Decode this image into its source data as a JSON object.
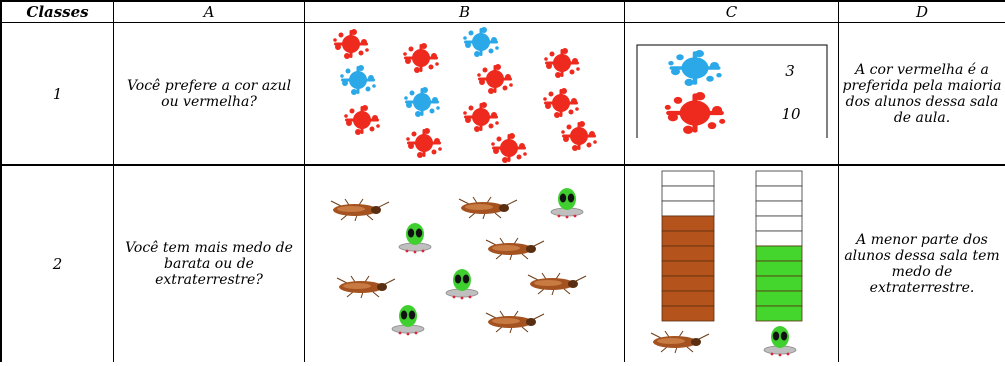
{
  "header": {
    "classes": "Classes",
    "col_a": "A",
    "col_b": "B",
    "col_c": "C",
    "col_d": "D"
  },
  "rows": [
    {
      "num": "1",
      "question": "Você prefere a cor azul ou vermelha?",
      "blue_count": "3",
      "red_count": "10",
      "conclusion": "A cor vermelha é a preferida pela maioria dos alunos dessa sala de aula."
    },
    {
      "num": "2",
      "question": "Você tem mais medo de barata ou de extraterrestre?",
      "conclusion": "A menor parte dos alunos dessa sala tem medo de extraterrestre."
    }
  ],
  "colors": {
    "red": "#ee2a1e",
    "blue": "#2aa8e8",
    "brown": "#b5531c",
    "green": "#44d62c"
  },
  "bar_levels": {
    "barata_segments_filled": 7,
    "extraterrestre_segments_filled": 5
  }
}
